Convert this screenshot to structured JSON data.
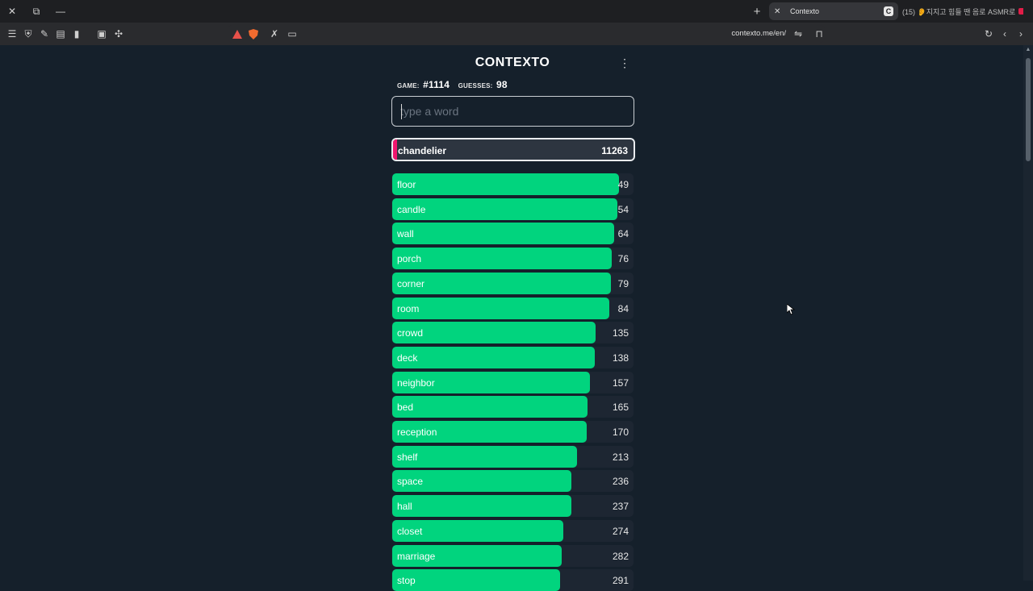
{
  "browser": {
    "active_tab": {
      "title": "Contexto",
      "favicon_letter": "C"
    },
    "other_tab": {
      "title": "(15) 👂지지고 힘들 땐 음로 ASMR로"
    },
    "url": "contexto.me/en/"
  },
  "game": {
    "logo": "CONTEXTO",
    "game_label": "GAME:",
    "game_number": "#1114",
    "guesses_label": "GUESSES:",
    "guesses_count": "98",
    "input_placeholder": "type a word",
    "last_guess": {
      "word": "chandelier",
      "rank": "11263"
    },
    "guesses": [
      {
        "word": "floor",
        "rank": "49",
        "fill": 0.935
      },
      {
        "word": "candle",
        "rank": "54",
        "fill": 0.93
      },
      {
        "word": "wall",
        "rank": "64",
        "fill": 0.917
      },
      {
        "word": "porch",
        "rank": "76",
        "fill": 0.905
      },
      {
        "word": "corner",
        "rank": "79",
        "fill": 0.902
      },
      {
        "word": "room",
        "rank": "84",
        "fill": 0.895
      },
      {
        "word": "crowd",
        "rank": "135",
        "fill": 0.84
      },
      {
        "word": "deck",
        "rank": "138",
        "fill": 0.836
      },
      {
        "word": "neighbor",
        "rank": "157",
        "fill": 0.816
      },
      {
        "word": "bed",
        "rank": "165",
        "fill": 0.808
      },
      {
        "word": "reception",
        "rank": "170",
        "fill": 0.803
      },
      {
        "word": "shelf",
        "rank": "213",
        "fill": 0.762
      },
      {
        "word": "space",
        "rank": "236",
        "fill": 0.741
      },
      {
        "word": "hall",
        "rank": "237",
        "fill": 0.74
      },
      {
        "word": "closet",
        "rank": "274",
        "fill": 0.705
      },
      {
        "word": "marriage",
        "rank": "282",
        "fill": 0.7
      },
      {
        "word": "stop",
        "rank": "291",
        "fill": 0.692
      }
    ]
  },
  "colors": {
    "bar_green": "#01d47e",
    "last_guess_marker": "#f0166e",
    "page_bg": "#15202b"
  }
}
